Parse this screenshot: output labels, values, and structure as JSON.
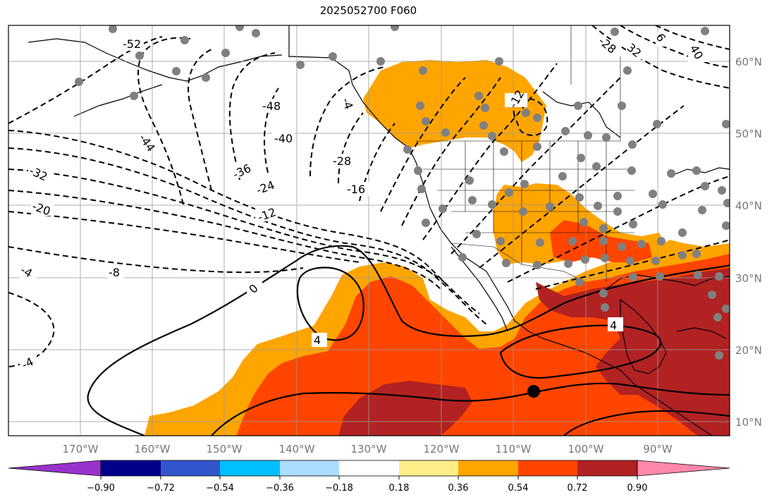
{
  "title": "2025052700 F060",
  "map": {
    "lon_range": [
      -180,
      -80
    ],
    "lat_range": [
      8,
      65
    ],
    "lon_ticks": [
      "170°W",
      "160°W",
      "150°W",
      "140°W",
      "130°W",
      "120°W",
      "110°W",
      "100°W",
      "90°W"
    ],
    "lat_ticks": [
      "10°N",
      "20°N",
      "30°N",
      "40°N",
      "50°N",
      "60°N"
    ],
    "grid": true,
    "marker": {
      "lon": -106.5,
      "lat": 14.2
    },
    "contour_labels": [
      "-52",
      "-48",
      "-44",
      "-40",
      "-36",
      "-32",
      "-28",
      "-28",
      "-24",
      "-20",
      "-16",
      "-12",
      "-12",
      "-8",
      "-4",
      "-4",
      "-4",
      "0",
      "4",
      "4",
      "32",
      "40",
      "6"
    ]
  },
  "colorbar": {
    "ticks": [
      "−0.90",
      "−0.72",
      "−0.54",
      "−0.36",
      "−0.18",
      "0.18",
      "0.36",
      "0.54",
      "0.72",
      "0.90"
    ],
    "colors": [
      "#9933cc",
      "#00008b",
      "#3355cc",
      "#00bfff",
      "#aaddff",
      "#ffffff",
      "#ffee88",
      "#ffa500",
      "#ff4500",
      "#b22222",
      "#ff88aa"
    ]
  }
}
